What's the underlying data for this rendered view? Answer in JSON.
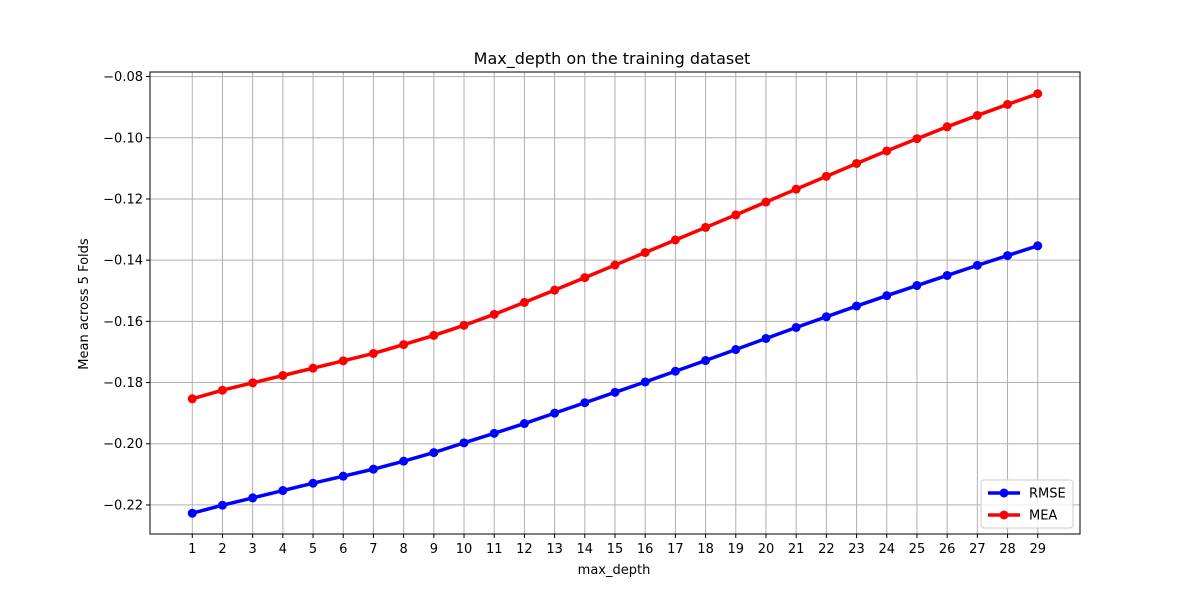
{
  "chart_data": {
    "type": "line",
    "title": "Max_depth on the training dataset",
    "xlabel": "max_depth",
    "ylabel": "Mean  across 5 Folds",
    "x": [
      1,
      2,
      3,
      4,
      5,
      6,
      7,
      8,
      9,
      10,
      11,
      12,
      13,
      14,
      15,
      16,
      17,
      18,
      19,
      20,
      21,
      22,
      23,
      24,
      25,
      26,
      27,
      28,
      29
    ],
    "xlim": [
      -0.4,
      30.4
    ],
    "ylim": [
      -0.2295,
      -0.0785
    ],
    "yticks": [
      -0.22,
      -0.2,
      -0.18,
      -0.16,
      -0.14,
      -0.12,
      -0.1,
      -0.08
    ],
    "ytick_labels": [
      "−0.22",
      "−0.20",
      "−0.18",
      "−0.16",
      "−0.14",
      "−0.12",
      "−0.10",
      "−0.08"
    ],
    "grid": true,
    "legend_position": "lower-right",
    "series": [
      {
        "name": "RMSE",
        "color": "#0000ff",
        "values": [
          -0.2227,
          -0.2201,
          -0.2177,
          -0.2153,
          -0.2129,
          -0.2106,
          -0.2083,
          -0.2057,
          -0.2029,
          -0.1997,
          -0.1966,
          -0.1934,
          -0.19,
          -0.1866,
          -0.1832,
          -0.1798,
          -0.1763,
          -0.1728,
          -0.1692,
          -0.1656,
          -0.162,
          -0.1585,
          -0.155,
          -0.1516,
          -0.1483,
          -0.145,
          -0.1417,
          -0.1385,
          -0.1353
        ]
      },
      {
        "name": "MEA",
        "color": "#ff0000",
        "values": [
          -0.1853,
          -0.1825,
          -0.1801,
          -0.1777,
          -0.1753,
          -0.1729,
          -0.1705,
          -0.1676,
          -0.1646,
          -0.1613,
          -0.1577,
          -0.1538,
          -0.1498,
          -0.1457,
          -0.1416,
          -0.1375,
          -0.1334,
          -0.1293,
          -0.1252,
          -0.121,
          -0.1168,
          -0.1126,
          -0.1084,
          -0.1043,
          -0.1003,
          -0.0964,
          -0.0927,
          -0.0891,
          -0.0856
        ]
      }
    ]
  }
}
